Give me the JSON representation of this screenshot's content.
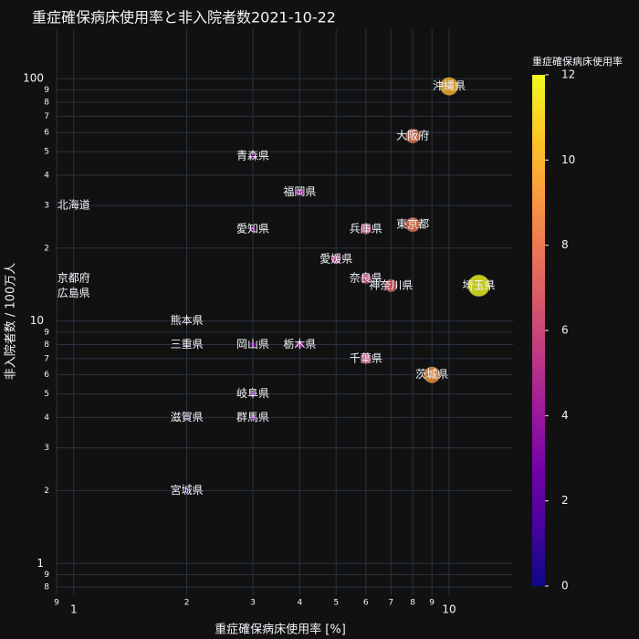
{
  "chart_data": {
    "type": "scatter",
    "title": "重症確保病床使用率と非入院者数2021-10-22",
    "x_label": "重症確保病床使用率 [%]",
    "y_label": "非入院者数 / 100万人",
    "labels": [
      "沖縄県",
      "大阪府",
      "青森県",
      "福岡県",
      "北海道",
      "愛知県",
      "兵庫県",
      "東京都",
      "愛媛県",
      "京都府",
      "広島県",
      "奈良県",
      "神奈川県",
      "埼玉県",
      "熊本県",
      "三重県",
      "岡山県",
      "栃木県",
      "千葉県",
      "茨城県",
      "岐阜県",
      "滋賀県",
      "群馬県",
      "宮城県"
    ],
    "x": [
      10,
      8,
      3,
      4,
      1,
      3,
      6,
      8,
      5,
      1,
      1,
      6,
      7,
      12,
      2,
      2,
      3,
      4,
      6,
      9,
      3,
      2,
      3,
      2
    ],
    "y": [
      93,
      58,
      48,
      34,
      30,
      24,
      24,
      25,
      18,
      15,
      13,
      15,
      14,
      14,
      10,
      8,
      8,
      8,
      7,
      6,
      5,
      4,
      4,
      2
    ],
    "log_x": true,
    "log_y": true,
    "grid": true,
    "xlim": [
      0.9,
      14.8
    ],
    "ylim": [
      0.74,
      160
    ],
    "xticks": [
      {
        "value": 0.9,
        "label": "9"
      },
      1,
      2,
      3,
      4,
      5,
      6,
      7,
      8,
      9,
      10
    ],
    "yticks": [
      {
        "value": 0.8,
        "label": "8"
      },
      {
        "value": 0.9,
        "label": "9"
      },
      1,
      2,
      3,
      4,
      5,
      6,
      7,
      8,
      9,
      10,
      {
        "value": 20,
        "label": "2"
      },
      {
        "value": 30,
        "label": "3"
      },
      {
        "value": 40,
        "label": "4"
      },
      {
        "value": 50,
        "label": "5"
      },
      {
        "value": 60,
        "label": "6"
      },
      {
        "value": 70,
        "label": "7"
      },
      {
        "value": 80,
        "label": "8"
      },
      {
        "value": 90,
        "label": "9"
      },
      100
    ],
    "colorscale": [
      "#0d0887",
      "#46039f",
      "#7201a8",
      "#9c179e",
      "#bd3786",
      "#d8576b",
      "#ed7953",
      "#fb9f3a",
      "#fdca26",
      "#f0f921"
    ],
    "colorbar": {
      "title": "重症確保病床使用率",
      "range": [
        0,
        12
      ],
      "ticks": [
        0,
        2,
        4,
        6,
        8,
        10,
        12
      ]
    }
  }
}
